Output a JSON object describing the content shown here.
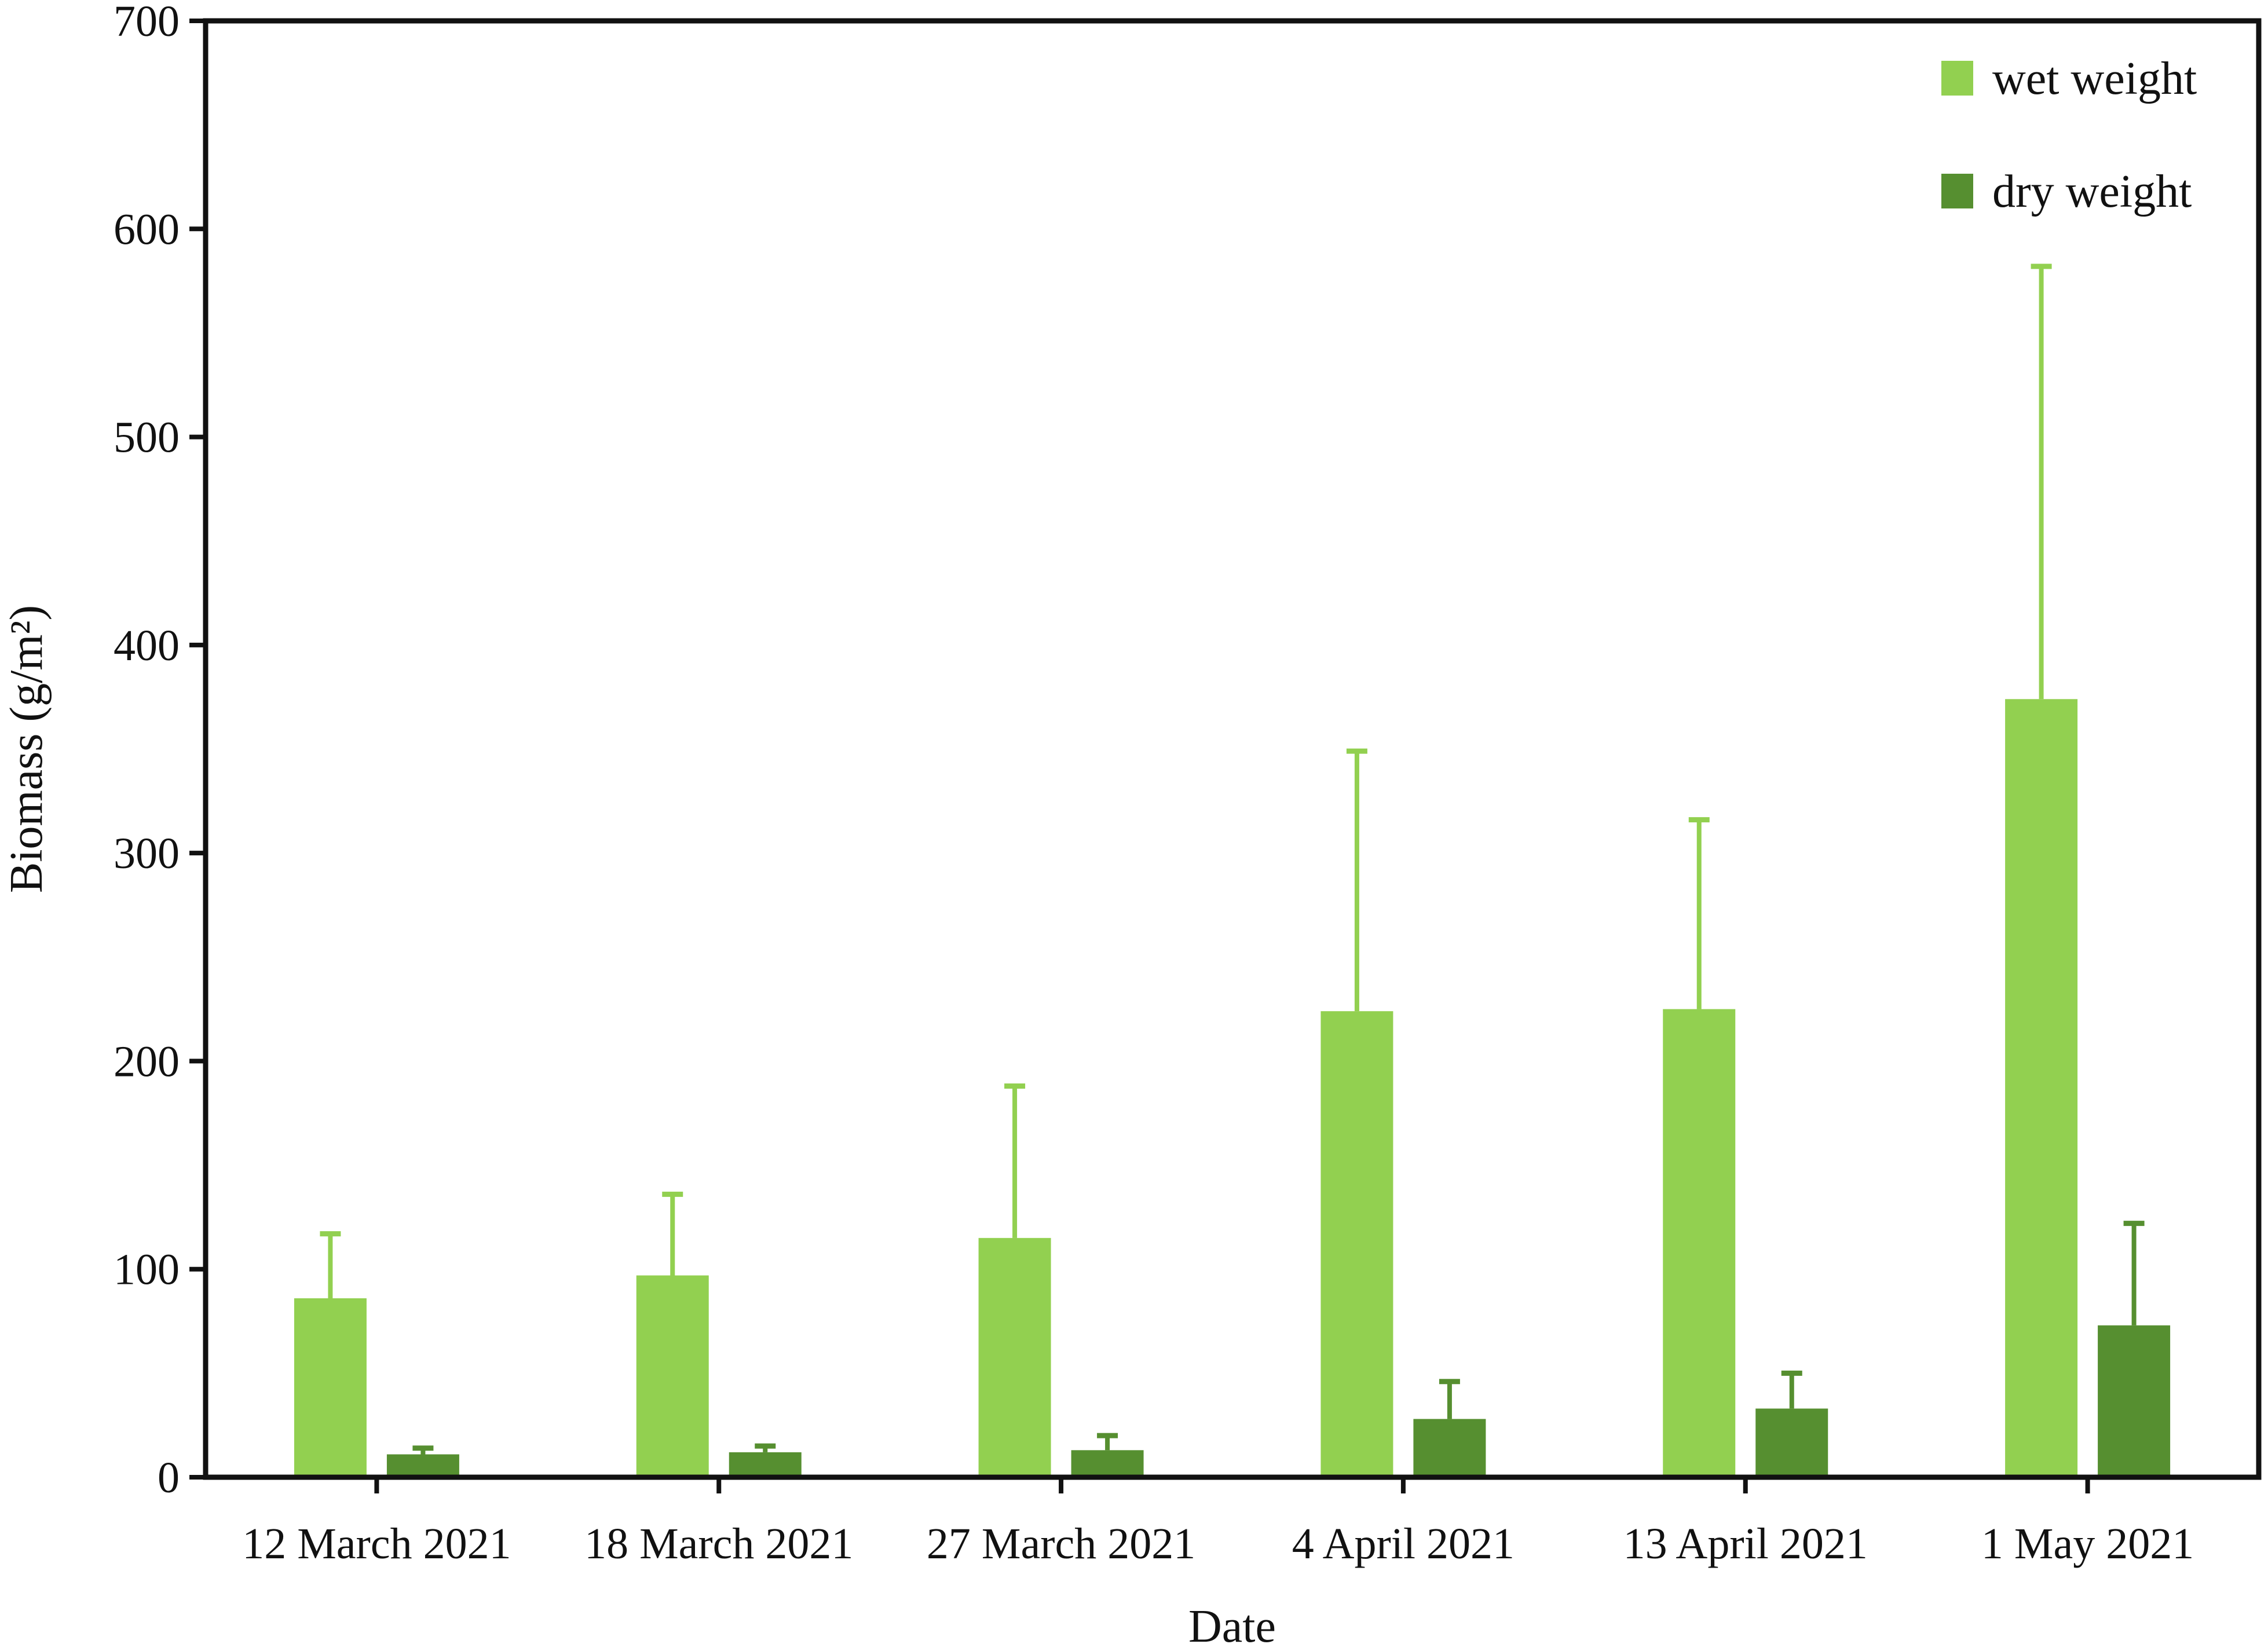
{
  "chart_data": {
    "type": "bar",
    "title": "",
    "xlabel": "Date",
    "ylabel": "Biomass (g/m²)",
    "ylim": [
      0,
      700
    ],
    "yticks": [
      0,
      100,
      200,
      300,
      400,
      500,
      600,
      700
    ],
    "grid": false,
    "legend_position": "top-right",
    "categories": [
      "12 March 2021",
      "18 March 2021",
      "27 March 2021",
      "4 April 2021",
      "13 April 2021",
      "1 May 2021"
    ],
    "series": [
      {
        "name": "wet weight",
        "color": "#92d050",
        "values": [
          86,
          97,
          115,
          224,
          225,
          374
        ],
        "error_upper": [
          117,
          136,
          188,
          349,
          316,
          582
        ]
      },
      {
        "name": "dry weight",
        "color": "#568f30",
        "values": [
          11,
          12,
          13,
          28,
          33,
          73
        ],
        "error_upper": [
          14,
          15,
          20,
          46,
          50,
          122
        ]
      }
    ]
  }
}
